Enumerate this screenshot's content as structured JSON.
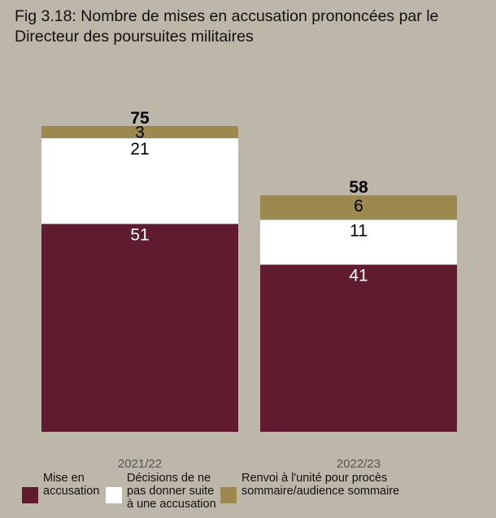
{
  "chart_data": {
    "type": "bar",
    "stacked": true,
    "title": "Fig 3.18: Nombre de mises en accusation prononcées par le Directeur des poursuites militaires",
    "categories": [
      "2021/22",
      "2022/23"
    ],
    "series": [
      {
        "name": "Mise en accusation",
        "values": [
          51,
          41
        ],
        "color": "#5e1c2e",
        "label_color": "#ffffff"
      },
      {
        "name": "Décisions de ne pas donner suite à une accusation",
        "values": [
          21,
          11
        ],
        "color": "#ffffff",
        "label_color": "#000000"
      },
      {
        "name": "Renvoi à l'unité pour procès sommaire/audience sommaire",
        "values": [
          3,
          6
        ],
        "color": "#9c894f",
        "label_color": "#000000"
      }
    ],
    "totals": [
      75,
      58
    ],
    "ylim": [
      0,
      75
    ],
    "grid": false,
    "legend_position": "bottom"
  },
  "legend": [
    {
      "text": "Mise en\naccusation"
    },
    {
      "text": "Décisions de ne\npas donner suite\nà une accusation"
    },
    {
      "text": "Renvoi à l'unité pour procès\nsommaire/audience sommaire"
    }
  ]
}
